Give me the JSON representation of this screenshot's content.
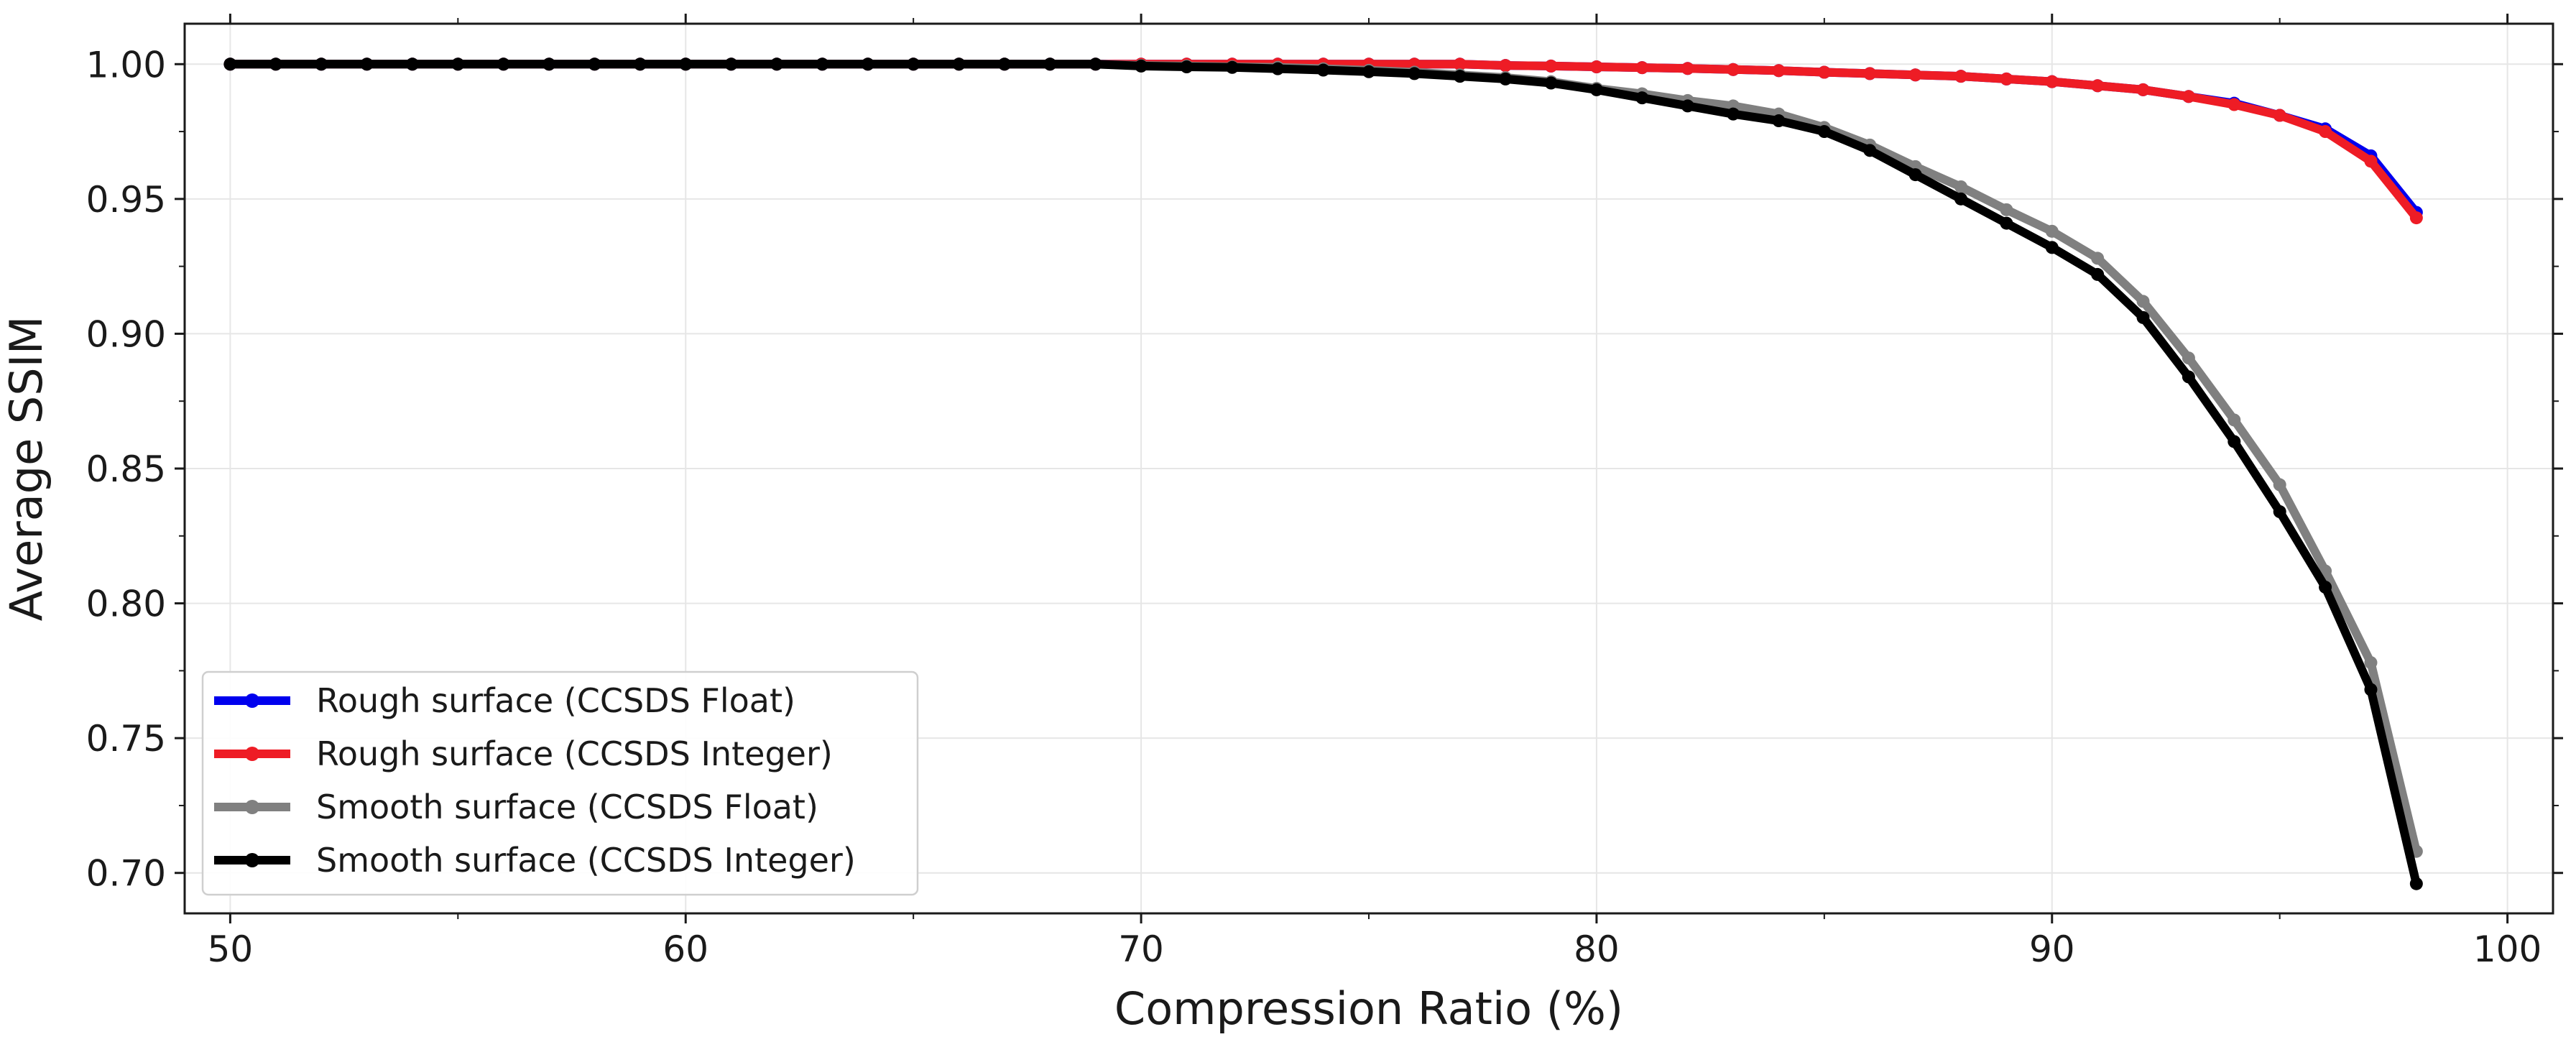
{
  "chart_data": {
    "type": "line",
    "title": "",
    "xlabel": "Compression Ratio (%)",
    "ylabel": "Average SSIM",
    "xlim": [
      49,
      101
    ],
    "ylim": [
      0.685,
      1.015
    ],
    "xticks": [
      50,
      60,
      70,
      80,
      90,
      100
    ],
    "xtick_labels": [
      "50",
      "60",
      "70",
      "80",
      "90",
      "100"
    ],
    "yticks": [
      0.7,
      0.75,
      0.8,
      0.85,
      0.9,
      0.95,
      1.0
    ],
    "ytick_labels": [
      "0.70",
      "0.75",
      "0.80",
      "0.85",
      "0.90",
      "0.95",
      "1.00"
    ],
    "grid": true,
    "legend_position": "lower-left",
    "x": [
      50,
      51,
      52,
      53,
      54,
      55,
      56,
      57,
      58,
      59,
      60,
      61,
      62,
      63,
      64,
      65,
      66,
      67,
      68,
      69,
      70,
      71,
      72,
      73,
      74,
      75,
      76,
      77,
      78,
      79,
      80,
      81,
      82,
      83,
      84,
      85,
      86,
      87,
      88,
      89,
      90,
      91,
      92,
      93,
      94,
      95,
      96,
      97,
      98
    ],
    "series": [
      {
        "name": "Rough surface (CCSDS Float)",
        "color": "#0000ee",
        "values": [
          1.0,
          1.0,
          1.0,
          1.0,
          1.0,
          1.0,
          1.0,
          1.0,
          1.0,
          1.0,
          1.0,
          1.0,
          1.0,
          1.0,
          1.0,
          1.0,
          1.0,
          1.0,
          1.0,
          1.0,
          1.0,
          1.0,
          1.0,
          1.0,
          1.0,
          1.0,
          1.0,
          1.0,
          0.9995,
          0.9993,
          0.999,
          0.9987,
          0.9984,
          0.998,
          0.9976,
          0.997,
          0.9965,
          0.996,
          0.9955,
          0.9945,
          0.9935,
          0.992,
          0.9905,
          0.988,
          0.9855,
          0.981,
          0.976,
          0.966,
          0.945
        ]
      },
      {
        "name": "Rough surface (CCSDS Integer)",
        "color": "#ee1c25",
        "values": [
          1.0,
          1.0,
          1.0,
          1.0,
          1.0,
          1.0,
          1.0,
          1.0,
          1.0,
          1.0,
          1.0,
          1.0,
          1.0,
          1.0,
          1.0,
          1.0,
          1.0,
          1.0,
          1.0,
          1.0,
          1.0,
          1.0,
          1.0,
          1.0,
          1.0,
          1.0,
          1.0,
          1.0,
          0.9995,
          0.9993,
          0.999,
          0.9987,
          0.9984,
          0.998,
          0.9976,
          0.997,
          0.9965,
          0.996,
          0.9955,
          0.9945,
          0.9935,
          0.992,
          0.9905,
          0.988,
          0.985,
          0.981,
          0.975,
          0.964,
          0.943
        ]
      },
      {
        "name": "Smooth surface (CCSDS Float)",
        "color": "#808080",
        "values": [
          1.0,
          1.0,
          1.0,
          1.0,
          1.0,
          1.0,
          1.0,
          1.0,
          1.0,
          1.0,
          1.0,
          1.0,
          1.0,
          1.0,
          1.0,
          1.0,
          1.0,
          1.0,
          1.0,
          1.0,
          0.9995,
          0.9993,
          0.999,
          0.9988,
          0.9983,
          0.9977,
          0.997,
          0.996,
          0.995,
          0.9935,
          0.991,
          0.989,
          0.9865,
          0.9845,
          0.9815,
          0.9765,
          0.97,
          0.962,
          0.9545,
          0.946,
          0.938,
          0.928,
          0.912,
          0.891,
          0.868,
          0.844,
          0.812,
          0.778,
          0.708
        ]
      },
      {
        "name": "Smooth surface (CCSDS Integer)",
        "color": "#000000",
        "values": [
          1.0,
          1.0,
          1.0,
          1.0,
          1.0,
          1.0,
          1.0,
          1.0,
          1.0,
          1.0,
          1.0,
          1.0,
          1.0,
          1.0,
          1.0,
          1.0,
          1.0,
          1.0,
          1.0,
          1.0,
          0.9993,
          0.999,
          0.9988,
          0.9983,
          0.9978,
          0.9972,
          0.9965,
          0.9955,
          0.9945,
          0.993,
          0.9905,
          0.9875,
          0.9845,
          0.9815,
          0.979,
          0.975,
          0.968,
          0.959,
          0.95,
          0.941,
          0.932,
          0.922,
          0.906,
          0.884,
          0.86,
          0.834,
          0.806,
          0.768,
          0.696
        ]
      }
    ]
  }
}
